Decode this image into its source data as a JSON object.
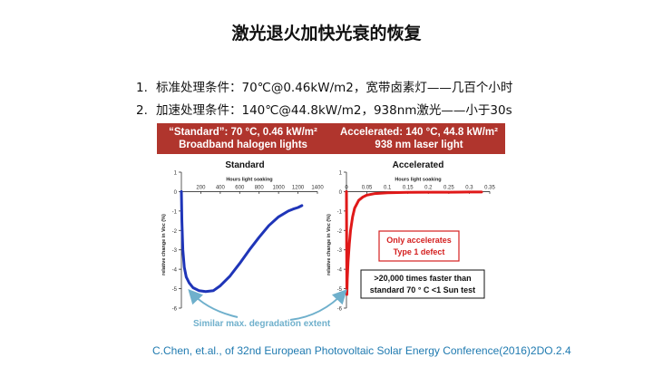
{
  "slide": {
    "title": "激光退火加快光衰的恢复",
    "conditions": [
      {
        "num": "1.",
        "text": "标准处理条件：70℃@0.46kW/m2，宽带卤素灯——几百个小时"
      },
      {
        "num": "2.",
        "text": "加速处理条件：140℃@44.8kW/m2，938nm激光——小于30s"
      }
    ],
    "banner": {
      "left": [
        "“Standard”: 70 °C, 0.46 kW/m²",
        "Broadband halogen lights"
      ],
      "right": [
        "Accelerated: 140 °C, 44.8 kW/m²",
        "938 nm laser light"
      ]
    },
    "similar_note": "Similar max. degradation extent",
    "citation": "C.Chen, et.al., of 32nd European Photovoltaic Solar Energy Conference(2016)2DO.2.4",
    "colors": {
      "banner": "#b0352d",
      "standard_curve": "#1f35b8",
      "accel_curve": "#e01919",
      "note": "#6fb0cc",
      "arrow": "#6fb0cc"
    }
  },
  "chart_data": [
    {
      "type": "line",
      "title": "Standard",
      "xlabel": "Hours light soaking",
      "ylabel": "relative change in Voc (%)",
      "xlim": [
        0,
        1400
      ],
      "ylim": [
        -6,
        1
      ],
      "xticks": [
        200,
        400,
        600,
        800,
        1000,
        1200,
        1400
      ],
      "yticks": [
        1,
        0,
        -1,
        -2,
        -3,
        -4,
        -5,
        -6
      ],
      "series": [
        {
          "x": [
            0,
            5,
            15,
            30,
            50,
            80,
            120,
            180,
            250,
            330,
            400,
            500,
            600,
            700,
            800,
            900,
            1000,
            1100,
            1150,
            1200,
            1240
          ],
          "y": [
            0,
            -1.5,
            -3.0,
            -3.9,
            -4.4,
            -4.7,
            -4.95,
            -5.1,
            -5.15,
            -5.1,
            -4.85,
            -4.35,
            -3.7,
            -3.0,
            -2.35,
            -1.75,
            -1.3,
            -1.0,
            -0.9,
            -0.82,
            -0.72
          ]
        }
      ]
    },
    {
      "type": "line",
      "title": "Accelerated",
      "xlabel": "Hours light soaking",
      "ylabel": "relative change in Voc (%)",
      "xlim": [
        0,
        0.35
      ],
      "ylim": [
        -6,
        1
      ],
      "xticks": [
        "0",
        "0.05",
        "0.1",
        "0.15",
        "0.2",
        "0.25",
        "0.3",
        "0.35"
      ],
      "yticks": [
        1,
        0,
        -1,
        -2,
        -3,
        -4,
        -5,
        -6
      ],
      "series": [
        {
          "x": [
            0,
            0.001,
            0.002,
            0.004,
            0.007,
            0.01,
            0.015,
            0.02,
            0.03,
            0.04,
            0.05,
            0.07,
            0.1,
            0.15,
            0.2,
            0.25,
            0.3,
            0.33
          ],
          "y": [
            0,
            -5.3,
            -4.5,
            -3.6,
            -2.7,
            -2.0,
            -1.3,
            -0.85,
            -0.45,
            -0.28,
            -0.18,
            -0.1,
            -0.06,
            -0.04,
            -0.03,
            -0.03,
            -0.02,
            -0.02
          ]
        }
      ],
      "annotations": [
        {
          "lines": [
            "Only accelerates",
            "Type 1 defect"
          ],
          "color": "#d42020"
        },
        {
          "lines": [
            ">20,000 times faster than",
            "standard 70 °  C <1 Sun test"
          ],
          "color": "#111111"
        }
      ]
    }
  ]
}
